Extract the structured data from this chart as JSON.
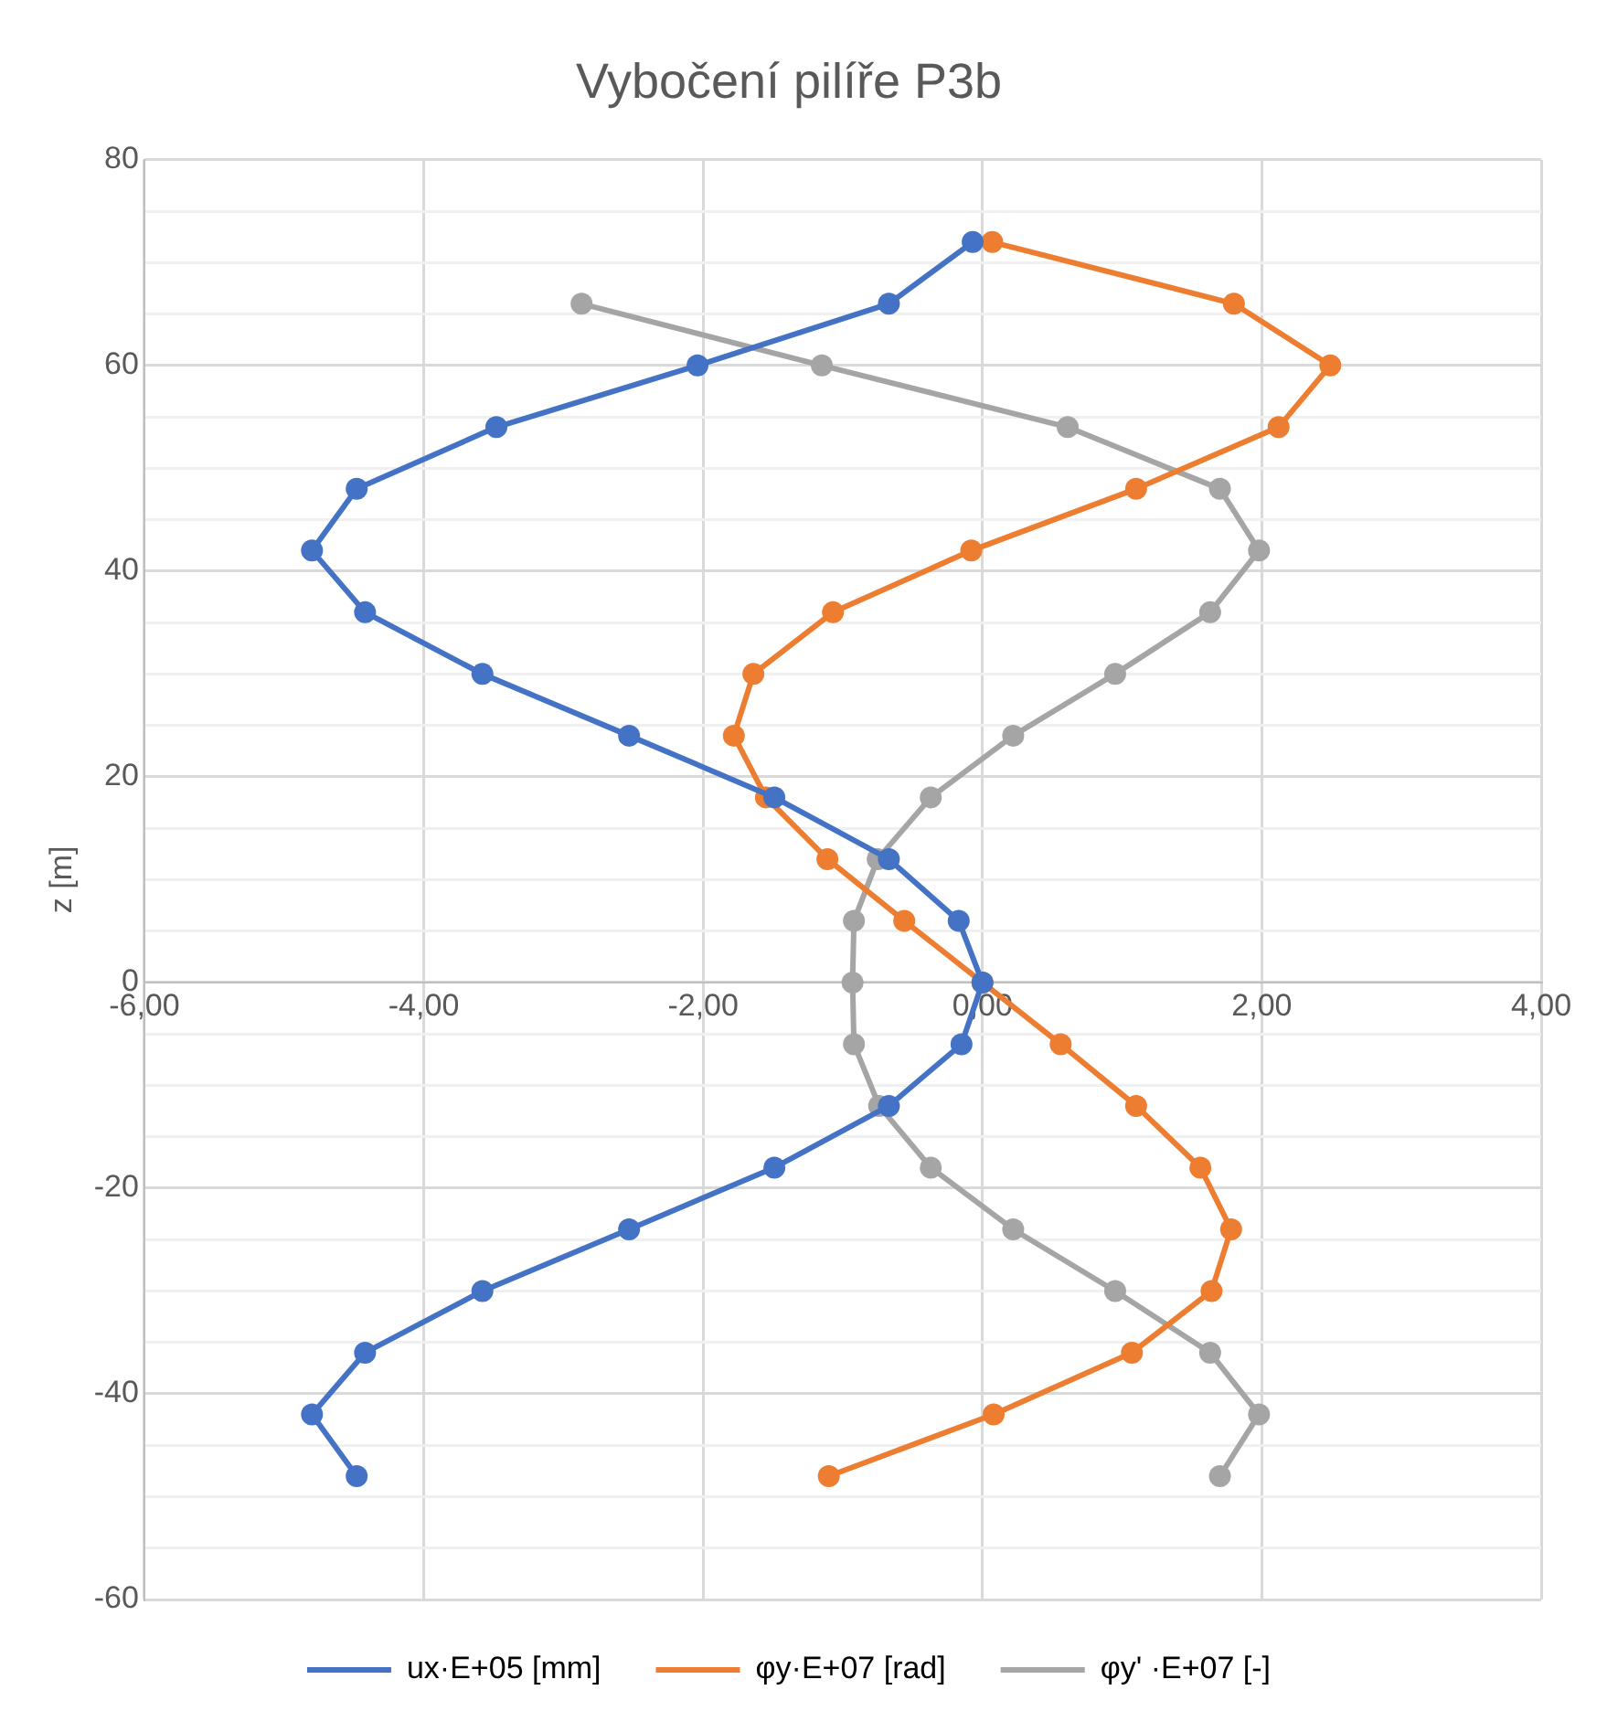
{
  "chart_data": {
    "type": "line",
    "title": "Vybočení pilíře P3b",
    "ylabel": "z [m]",
    "xlim": [
      -6,
      4
    ],
    "xticks": [
      {
        "value": -6,
        "label": "-6,00"
      },
      {
        "value": -4,
        "label": "-4,00"
      },
      {
        "value": -2,
        "label": "-2,00"
      },
      {
        "value": 0,
        "label": "0,00"
      },
      {
        "value": 2,
        "label": "2,00"
      },
      {
        "value": 4,
        "label": "4,00"
      }
    ],
    "ylim": [
      -60,
      80
    ],
    "yticks": [
      -60,
      {
        "value": -55,
        "label": null
      },
      {
        "value": -50,
        "label": null
      },
      {
        "value": -45,
        "label": null
      },
      -40,
      {
        "value": -35,
        "label": null
      },
      {
        "value": -30,
        "label": null
      },
      {
        "value": -25,
        "label": null
      },
      -20,
      {
        "value": -15,
        "label": null
      },
      {
        "value": -10,
        "label": null
      },
      {
        "value": -5,
        "label": null
      },
      0,
      {
        "value": 5,
        "label": null
      },
      {
        "value": 10,
        "label": null
      },
      {
        "value": 15,
        "label": null
      },
      20,
      {
        "value": 25,
        "label": null
      },
      {
        "value": 30,
        "label": null
      },
      {
        "value": 35,
        "label": null
      },
      40,
      {
        "value": 45,
        "label": null
      },
      {
        "value": 50,
        "label": null
      },
      {
        "value": 55,
        "label": null
      },
      60,
      {
        "value": 65,
        "label": null
      },
      {
        "value": 70,
        "label": null
      },
      {
        "value": 75,
        "label": null
      },
      80
    ],
    "grid": true,
    "legend": "bottom",
    "marker": "circle",
    "line_style": "solid",
    "series": [
      {
        "name": "ux·E+05 [mm]",
        "color": "#4472c4",
        "x": [
          -0.07,
          -0.67,
          -2.04,
          -3.48,
          -4.48,
          -4.8,
          -4.42,
          -3.58,
          -2.53,
          -1.49,
          -0.67,
          -0.17,
          0,
          -0.15,
          -0.67,
          -1.49,
          -2.53,
          -3.58,
          -4.42,
          -4.8,
          -4.48
        ],
        "values": [
          72,
          66,
          60,
          54,
          48,
          42,
          36,
          30,
          24,
          18,
          12,
          6,
          0,
          -6,
          -12,
          -18,
          -24,
          -30,
          -36,
          -42,
          -48
        ]
      },
      {
        "name": "φy·E+07 [rad]",
        "color": "#ed7d31",
        "x": [
          0.07,
          1.8,
          2.49,
          2.12,
          1.1,
          -0.08,
          -1.07,
          -1.64,
          -1.78,
          -1.55,
          -1.11,
          -0.56,
          0,
          0.56,
          1.1,
          1.56,
          1.78,
          1.64,
          1.07,
          0.08,
          -1.1
        ],
        "values": [
          72,
          66,
          60,
          54,
          48,
          42,
          36,
          30,
          24,
          18,
          12,
          6,
          0,
          -6,
          -12,
          -18,
          -24,
          -30,
          -36,
          -42,
          -48
        ]
      },
      {
        "name": "φy' ·E+07 [-]",
        "color": "#a5a5a5",
        "x": [
          -2.87,
          -1.15,
          0.61,
          1.7,
          1.98,
          1.63,
          0.95,
          0.22,
          -0.37,
          -0.75,
          -0.92,
          -0.93,
          -0.92,
          -0.74,
          -0.37,
          0.22,
          0.95,
          1.63,
          1.98,
          1.7
        ],
        "values": [
          66,
          60,
          54,
          48,
          42,
          36,
          30,
          24,
          18,
          12,
          6,
          0,
          -6,
          -12,
          -18,
          -24,
          -30,
          -36,
          -42,
          -48
        ]
      }
    ]
  }
}
